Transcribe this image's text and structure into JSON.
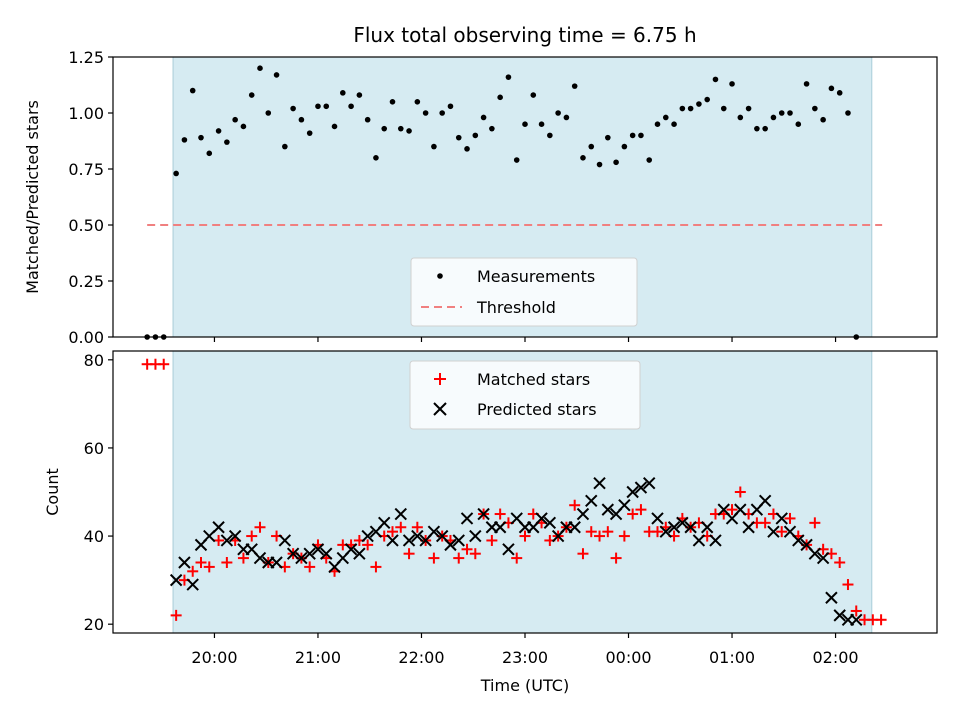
{
  "chart_data": [
    {
      "type": "scatter",
      "title": "Flux total observing time = 6.75 h",
      "xlabel": "",
      "ylabel": "Matched/Predicted stars",
      "x_unit": "hours after 20:00 UTC",
      "xlim": [
        -0.98,
        6.98
      ],
      "ylim": [
        0,
        1.25
      ],
      "yticks": [
        "0.00",
        "0.25",
        "0.50",
        "0.75",
        "1.00",
        "1.25"
      ],
      "shaded_region": [
        -0.4,
        6.35
      ],
      "threshold": {
        "name": "Threshold",
        "value": 0.5,
        "x_range": [
          -0.65,
          6.45
        ],
        "color": "#f08080"
      },
      "legend": [
        "Measurements",
        "Threshold"
      ],
      "legend_position": "lower center",
      "series": [
        {
          "name": "Measurements",
          "color": "#000000",
          "points": [
            [
              -0.65,
              0.0
            ],
            [
              -0.57,
              0.0
            ],
            [
              -0.49,
              0.0
            ],
            [
              -0.37,
              0.73
            ],
            [
              -0.29,
              0.88
            ],
            [
              -0.21,
              1.1
            ],
            [
              -0.13,
              0.89
            ],
            [
              -0.05,
              0.82
            ],
            [
              0.04,
              0.92
            ],
            [
              0.12,
              0.87
            ],
            [
              0.2,
              0.97
            ],
            [
              0.28,
              0.94
            ],
            [
              0.36,
              1.08
            ],
            [
              0.44,
              1.2
            ],
            [
              0.52,
              1.0
            ],
            [
              0.6,
              1.17
            ],
            [
              0.68,
              0.85
            ],
            [
              0.76,
              1.02
            ],
            [
              0.84,
              0.97
            ],
            [
              0.92,
              0.91
            ],
            [
              1.0,
              1.03
            ],
            [
              1.08,
              1.03
            ],
            [
              1.16,
              0.94
            ],
            [
              1.24,
              1.09
            ],
            [
              1.32,
              1.03
            ],
            [
              1.4,
              1.08
            ],
            [
              1.48,
              0.97
            ],
            [
              1.56,
              0.8
            ],
            [
              1.64,
              0.93
            ],
            [
              1.72,
              1.05
            ],
            [
              1.8,
              0.93
            ],
            [
              1.88,
              0.92
            ],
            [
              1.96,
              1.05
            ],
            [
              2.04,
              1.0
            ],
            [
              2.12,
              0.85
            ],
            [
              2.2,
              1.0
            ],
            [
              2.28,
              1.03
            ],
            [
              2.36,
              0.89
            ],
            [
              2.44,
              0.84
            ],
            [
              2.52,
              0.9
            ],
            [
              2.6,
              0.98
            ],
            [
              2.68,
              0.93
            ],
            [
              2.76,
              1.07
            ],
            [
              2.84,
              1.16
            ],
            [
              2.92,
              0.79
            ],
            [
              3.0,
              0.95
            ],
            [
              3.08,
              1.08
            ],
            [
              3.16,
              0.95
            ],
            [
              3.24,
              0.9
            ],
            [
              3.32,
              1.0
            ],
            [
              3.4,
              0.98
            ],
            [
              3.48,
              1.12
            ],
            [
              3.56,
              0.8
            ],
            [
              3.64,
              0.85
            ],
            [
              3.72,
              0.77
            ],
            [
              3.8,
              0.89
            ],
            [
              3.88,
              0.78
            ],
            [
              3.96,
              0.85
            ],
            [
              4.04,
              0.9
            ],
            [
              4.12,
              0.9
            ],
            [
              4.2,
              0.79
            ],
            [
              4.28,
              0.95
            ],
            [
              4.36,
              0.98
            ],
            [
              4.44,
              0.95
            ],
            [
              4.52,
              1.02
            ],
            [
              4.6,
              1.02
            ],
            [
              4.68,
              1.04
            ],
            [
              4.76,
              1.06
            ],
            [
              4.84,
              1.15
            ],
            [
              4.92,
              1.02
            ],
            [
              5.0,
              1.13
            ],
            [
              5.08,
              0.98
            ],
            [
              5.16,
              1.02
            ],
            [
              5.24,
              0.93
            ],
            [
              5.32,
              0.93
            ],
            [
              5.4,
              0.98
            ],
            [
              5.48,
              1.0
            ],
            [
              5.56,
              1.0
            ],
            [
              5.64,
              0.95
            ],
            [
              5.72,
              1.13
            ],
            [
              5.8,
              1.02
            ],
            [
              5.88,
              0.97
            ],
            [
              5.96,
              1.11
            ],
            [
              6.04,
              1.09
            ],
            [
              6.12,
              1.0
            ],
            [
              6.2,
              0.0
            ]
          ]
        }
      ]
    },
    {
      "type": "scatter",
      "title": "",
      "xlabel": "Time (UTC)",
      "ylabel": "Count",
      "x_unit": "hours after 20:00 UTC",
      "xlim": [
        -0.98,
        6.98
      ],
      "ylim": [
        18,
        82
      ],
      "xticks": [
        "20:00",
        "21:00",
        "22:00",
        "23:00",
        "00:00",
        "01:00",
        "02:00"
      ],
      "xtick_values": [
        0,
        1,
        2,
        3,
        4,
        5,
        6
      ],
      "yticks": [
        "20",
        "40",
        "60",
        "80"
      ],
      "shaded_region": [
        -0.4,
        6.35
      ],
      "legend": [
        "Matched stars",
        "Predicted stars"
      ],
      "legend_position": "upper center",
      "series": [
        {
          "name": "Matched stars",
          "color": "#ff0000",
          "marker": "plus",
          "points": [
            [
              -0.65,
              79
            ],
            [
              -0.57,
              79
            ],
            [
              -0.49,
              79
            ],
            [
              -0.37,
              22
            ],
            [
              -0.29,
              30
            ],
            [
              -0.21,
              32
            ],
            [
              -0.13,
              34
            ],
            [
              -0.05,
              33
            ],
            [
              0.04,
              39
            ],
            [
              0.12,
              34
            ],
            [
              0.2,
              39
            ],
            [
              0.28,
              35
            ],
            [
              0.36,
              40
            ],
            [
              0.44,
              42
            ],
            [
              0.52,
              34
            ],
            [
              0.6,
              40
            ],
            [
              0.68,
              33
            ],
            [
              0.76,
              36
            ],
            [
              0.84,
              35
            ],
            [
              0.92,
              33
            ],
            [
              1.0,
              38
            ],
            [
              1.08,
              35
            ],
            [
              1.16,
              32
            ],
            [
              1.24,
              38
            ],
            [
              1.32,
              38
            ],
            [
              1.4,
              39
            ],
            [
              1.48,
              38
            ],
            [
              1.56,
              33
            ],
            [
              1.64,
              40
            ],
            [
              1.72,
              41
            ],
            [
              1.8,
              42
            ],
            [
              1.88,
              36
            ],
            [
              1.96,
              42
            ],
            [
              2.04,
              39
            ],
            [
              2.12,
              35
            ],
            [
              2.2,
              40
            ],
            [
              2.28,
              39
            ],
            [
              2.36,
              35
            ],
            [
              2.44,
              37
            ],
            [
              2.52,
              36
            ],
            [
              2.6,
              45
            ],
            [
              2.68,
              39
            ],
            [
              2.76,
              45
            ],
            [
              2.84,
              43
            ],
            [
              2.92,
              35
            ],
            [
              3.0,
              40
            ],
            [
              3.08,
              45
            ],
            [
              3.16,
              43
            ],
            [
              3.24,
              39
            ],
            [
              3.32,
              40
            ],
            [
              3.4,
              42
            ],
            [
              3.48,
              47
            ],
            [
              3.56,
              36
            ],
            [
              3.64,
              41
            ],
            [
              3.72,
              40
            ],
            [
              3.8,
              41
            ],
            [
              3.88,
              35
            ],
            [
              3.96,
              40
            ],
            [
              4.04,
              45
            ],
            [
              4.12,
              46
            ],
            [
              4.2,
              41
            ],
            [
              4.28,
              41
            ],
            [
              4.36,
              42
            ],
            [
              4.44,
              40
            ],
            [
              4.52,
              44
            ],
            [
              4.6,
              42
            ],
            [
              4.68,
              43
            ],
            [
              4.76,
              40
            ],
            [
              4.84,
              45
            ],
            [
              4.92,
              45
            ],
            [
              5.0,
              46
            ],
            [
              5.08,
              50
            ],
            [
              5.16,
              45
            ],
            [
              5.24,
              43
            ],
            [
              5.32,
              43
            ],
            [
              5.4,
              45
            ],
            [
              5.48,
              41
            ],
            [
              5.56,
              44
            ],
            [
              5.64,
              40
            ],
            [
              5.72,
              38
            ],
            [
              5.8,
              43
            ],
            [
              5.88,
              37
            ],
            [
              5.96,
              36
            ],
            [
              6.04,
              34
            ],
            [
              6.12,
              29
            ],
            [
              6.2,
              23
            ],
            [
              6.28,
              21
            ],
            [
              6.36,
              21
            ],
            [
              6.44,
              21
            ]
          ]
        },
        {
          "name": "Predicted stars",
          "color": "#000000",
          "marker": "x",
          "points": [
            [
              -0.37,
              30
            ],
            [
              -0.29,
              34
            ],
            [
              -0.21,
              29
            ],
            [
              -0.13,
              38
            ],
            [
              -0.05,
              40
            ],
            [
              0.04,
              42
            ],
            [
              0.12,
              39
            ],
            [
              0.2,
              40
            ],
            [
              0.28,
              37
            ],
            [
              0.36,
              37
            ],
            [
              0.44,
              35
            ],
            [
              0.52,
              34
            ],
            [
              0.6,
              34
            ],
            [
              0.68,
              39
            ],
            [
              0.76,
              36
            ],
            [
              0.84,
              35
            ],
            [
              0.92,
              36
            ],
            [
              1.0,
              37
            ],
            [
              1.08,
              36
            ],
            [
              1.16,
              33
            ],
            [
              1.24,
              35
            ],
            [
              1.32,
              37
            ],
            [
              1.4,
              36
            ],
            [
              1.48,
              40
            ],
            [
              1.56,
              41
            ],
            [
              1.64,
              43
            ],
            [
              1.72,
              39
            ],
            [
              1.8,
              45
            ],
            [
              1.88,
              39
            ],
            [
              1.96,
              40
            ],
            [
              2.04,
              39
            ],
            [
              2.12,
              41
            ],
            [
              2.2,
              40
            ],
            [
              2.28,
              38
            ],
            [
              2.36,
              39
            ],
            [
              2.44,
              44
            ],
            [
              2.52,
              40
            ],
            [
              2.6,
              45
            ],
            [
              2.68,
              42
            ],
            [
              2.76,
              42
            ],
            [
              2.84,
              37
            ],
            [
              2.92,
              44
            ],
            [
              3.0,
              42
            ],
            [
              3.08,
              42
            ],
            [
              3.16,
              44
            ],
            [
              3.24,
              43
            ],
            [
              3.32,
              40
            ],
            [
              3.4,
              42
            ],
            [
              3.48,
              42
            ],
            [
              3.56,
              45
            ],
            [
              3.64,
              48
            ],
            [
              3.72,
              52
            ],
            [
              3.8,
              46
            ],
            [
              3.88,
              45
            ],
            [
              3.96,
              47
            ],
            [
              4.04,
              50
            ],
            [
              4.12,
              51
            ],
            [
              4.2,
              52
            ],
            [
              4.28,
              44
            ],
            [
              4.36,
              41
            ],
            [
              4.44,
              42
            ],
            [
              4.52,
              43
            ],
            [
              4.6,
              42
            ],
            [
              4.68,
              39
            ],
            [
              4.76,
              42
            ],
            [
              4.84,
              39
            ],
            [
              4.92,
              46
            ],
            [
              5.0,
              44
            ],
            [
              5.08,
              46
            ],
            [
              5.16,
              42
            ],
            [
              5.24,
              46
            ],
            [
              5.32,
              48
            ],
            [
              5.4,
              41
            ],
            [
              5.48,
              44
            ],
            [
              5.56,
              41
            ],
            [
              5.64,
              39
            ],
            [
              5.72,
              38
            ],
            [
              5.8,
              36
            ],
            [
              5.88,
              35
            ],
            [
              5.96,
              26
            ],
            [
              6.04,
              22
            ],
            [
              6.12,
              21
            ],
            [
              6.2,
              21
            ]
          ]
        }
      ]
    }
  ]
}
